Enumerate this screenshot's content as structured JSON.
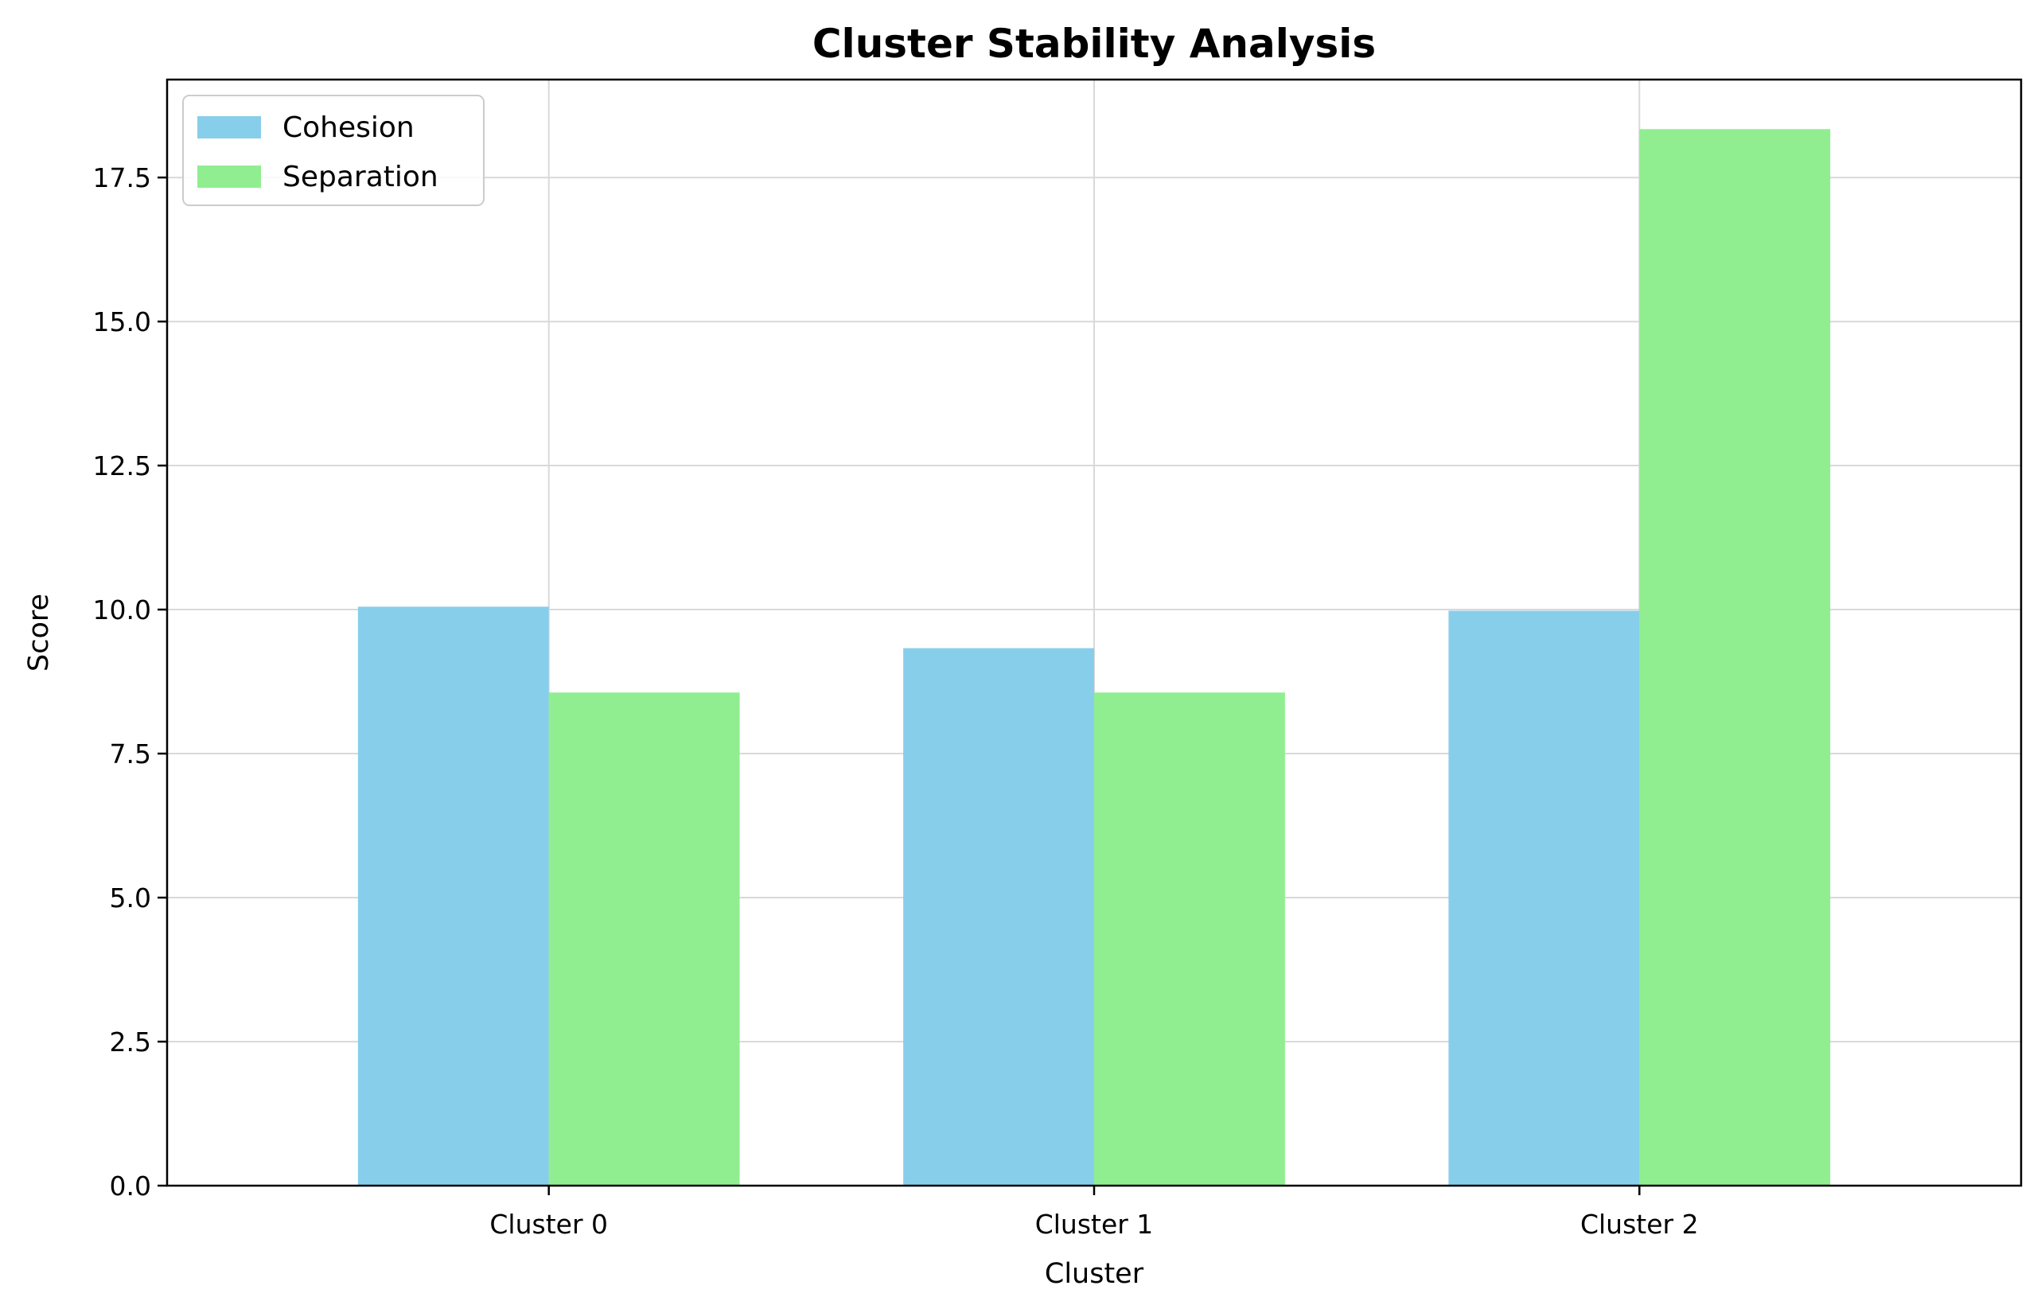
{
  "chart_data": {
    "type": "bar",
    "title": "Cluster Stability Analysis",
    "xlabel": "Cluster",
    "ylabel": "Score",
    "categories": [
      "Cluster 0",
      "Cluster 1",
      "Cluster 2"
    ],
    "series": [
      {
        "name": "Cohesion",
        "values": [
          10.05,
          9.33,
          9.98
        ],
        "color": "#87ceeb"
      },
      {
        "name": "Separation",
        "values": [
          8.56,
          8.56,
          18.34
        ],
        "color": "#90ee90"
      }
    ],
    "ylim": [
      0,
      19.2
    ],
    "yticks": [
      "0.0",
      "2.5",
      "5.0",
      "7.5",
      "10.0",
      "12.5",
      "15.0",
      "17.5"
    ],
    "grid": true,
    "legend_position": "top-left"
  }
}
